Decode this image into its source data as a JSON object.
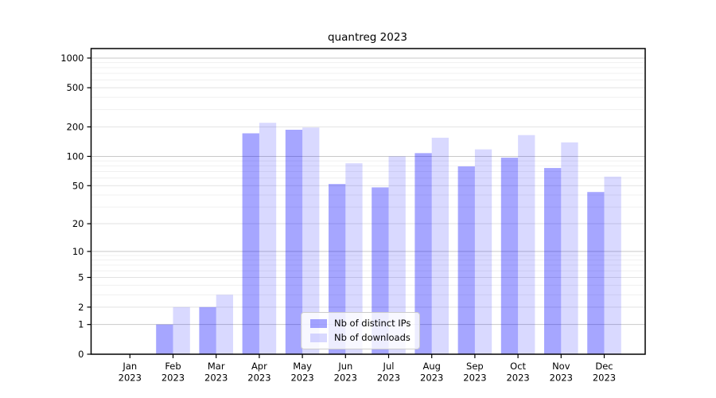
{
  "title": "quantreg 2023",
  "chart_data": {
    "type": "bar",
    "title": "quantreg 2023",
    "categories": [
      "Jan 2023",
      "Feb 2023",
      "Mar 2023",
      "Apr 2023",
      "May 2023",
      "Jun 2023",
      "Jul 2023",
      "Aug 2023",
      "Sep 2023",
      "Oct 2023",
      "Nov 2023",
      "Dec 2023"
    ],
    "x_tick_months": [
      "Jan",
      "Feb",
      "Mar",
      "Apr",
      "May",
      "Jun",
      "Jul",
      "Aug",
      "Sep",
      "Oct",
      "Nov",
      "Dec"
    ],
    "x_tick_year": "2023",
    "series": [
      {
        "name": "Nb of distinct IPs",
        "color": "rgba(0,0,255,0.35)",
        "color_hex": "#a6a6f8",
        "values": [
          0,
          1,
          2,
          172,
          187,
          52,
          48,
          108,
          79,
          97,
          76,
          43
        ]
      },
      {
        "name": "Nb of downloads",
        "color": "rgba(0,0,255,0.15)",
        "color_hex": "#d9d9fa",
        "values": [
          0,
          2,
          3,
          220,
          197,
          85,
          100,
          155,
          118,
          165,
          139,
          62
        ]
      }
    ],
    "y_scale": "log10(value+1)",
    "y_ticks": [
      0,
      1,
      2,
      5,
      10,
      20,
      50,
      100,
      200,
      500,
      1000
    ],
    "ylim": [
      0,
      1000
    ],
    "grid": true,
    "legend_position": "inside-bottom-center",
    "colors": {
      "major_grid": "#c9c9c9",
      "labeled_minor_grid": "#e2e2e2",
      "minor_grid": "#f0f0f0",
      "axis": "#000000",
      "tick_text": "#000000",
      "background": "#ffffff"
    }
  }
}
